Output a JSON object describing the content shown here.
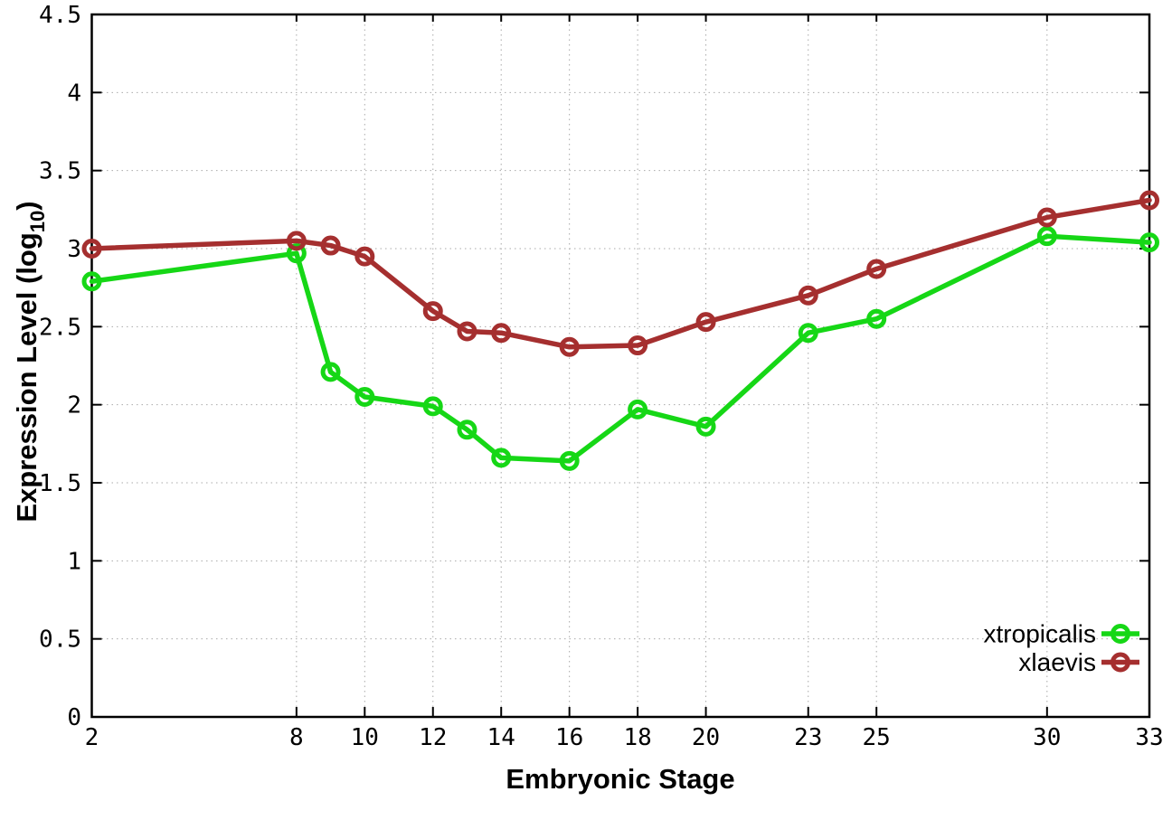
{
  "chart_data": {
    "type": "line",
    "title": "",
    "xlabel": "Embryonic Stage",
    "ylabel": "Expression Level (log10)",
    "ylabel_parts": {
      "prefix": "Expression Level (log",
      "sub": "10",
      "suffix": ")"
    },
    "x": [
      2,
      8,
      9,
      10,
      12,
      13,
      14,
      16,
      18,
      20,
      23,
      25,
      30,
      33
    ],
    "series": [
      {
        "name": "xtropicalis",
        "color": "#16d716",
        "marker": "open-circle",
        "values": [
          2.79,
          2.97,
          2.21,
          2.05,
          1.99,
          1.84,
          1.66,
          1.64,
          1.97,
          1.86,
          2.46,
          2.55,
          3.08,
          3.04
        ]
      },
      {
        "name": "xlaevis",
        "color": "#a52f2f",
        "marker": "open-circle",
        "values": [
          3.0,
          3.05,
          3.02,
          2.95,
          2.6,
          2.47,
          2.46,
          2.37,
          2.38,
          2.53,
          2.7,
          2.87,
          3.2,
          3.31
        ]
      }
    ],
    "xlim": [
      2,
      33
    ],
    "ylim": [
      0,
      4.5
    ],
    "xticks": [
      2,
      8,
      10,
      12,
      14,
      16,
      18,
      20,
      23,
      25,
      30,
      33
    ],
    "yticks": [
      0,
      0.5,
      1,
      1.5,
      2,
      2.5,
      3,
      3.5,
      4,
      4.5
    ],
    "ytick_labels": [
      "0",
      "0.5",
      "1",
      "1.5",
      "2",
      "2.5",
      "3",
      "3.5",
      "4",
      "4.5"
    ],
    "grid": true,
    "grid_style": "dotted",
    "legend_position": "bottom-right",
    "background_color": "#ffffff",
    "border_color": "#000000",
    "grid_color": "#a9a9a9"
  }
}
